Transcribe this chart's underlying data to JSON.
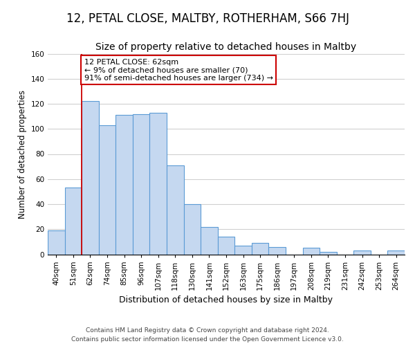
{
  "title": "12, PETAL CLOSE, MALTBY, ROTHERHAM, S66 7HJ",
  "subtitle": "Size of property relative to detached houses in Maltby",
  "xlabel": "Distribution of detached houses by size in Maltby",
  "ylabel": "Number of detached properties",
  "footer_line1": "Contains HM Land Registry data © Crown copyright and database right 2024.",
  "footer_line2": "Contains public sector information licensed under the Open Government Licence v3.0.",
  "bin_labels": [
    "40sqm",
    "51sqm",
    "62sqm",
    "74sqm",
    "85sqm",
    "96sqm",
    "107sqm",
    "118sqm",
    "130sqm",
    "141sqm",
    "152sqm",
    "163sqm",
    "175sqm",
    "186sqm",
    "197sqm",
    "208sqm",
    "219sqm",
    "231sqm",
    "242sqm",
    "253sqm",
    "264sqm"
  ],
  "bar_heights": [
    19,
    53,
    122,
    103,
    111,
    112,
    113,
    71,
    40,
    22,
    14,
    7,
    9,
    6,
    0,
    5,
    2,
    0,
    3,
    0,
    3
  ],
  "bar_color": "#c5d8f0",
  "bar_edge_color": "#5b9bd5",
  "highlight_line_color": "#cc0000",
  "annotation_line1": "12 PETAL CLOSE: 62sqm",
  "annotation_line2": "← 9% of detached houses are smaller (70)",
  "annotation_line3": "91% of semi-detached houses are larger (734) →",
  "annotation_box_color": "#ffffff",
  "annotation_box_edge_color": "#cc0000",
  "ylim": [
    0,
    160
  ],
  "yticks": [
    0,
    20,
    40,
    60,
    80,
    100,
    120,
    140,
    160
  ],
  "grid_color": "#d0d0d0",
  "background_color": "#ffffff",
  "title_fontsize": 12,
  "subtitle_fontsize": 10,
  "xlabel_fontsize": 9,
  "ylabel_fontsize": 8.5,
  "tick_fontsize": 7.5,
  "footer_fontsize": 6.5
}
